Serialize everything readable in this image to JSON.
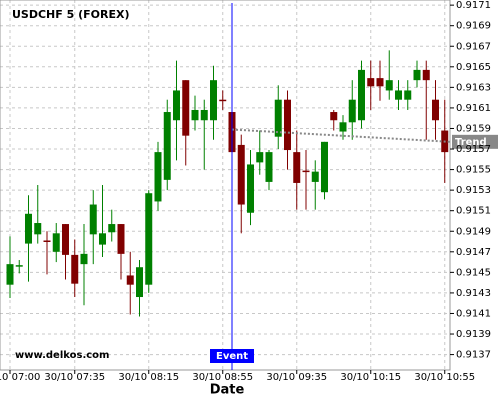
{
  "chart_data": {
    "type": "candlestick",
    "title": "USDCHF 5 (FOREX)",
    "x_label": "Date",
    "watermark": "www.delkos.com",
    "categories": [
      "30/10 07:00",
      null,
      null,
      null,
      null,
      null,
      null,
      "30/10 07:35",
      null,
      null,
      null,
      null,
      null,
      null,
      null,
      "30/10 08:15",
      null,
      null,
      null,
      null,
      null,
      null,
      null,
      "30/10 08:55",
      null,
      null,
      null,
      null,
      null,
      null,
      null,
      "30/10 09:35",
      null,
      null,
      null,
      null,
      null,
      null,
      null,
      "30/10 10:15",
      null,
      null,
      null,
      null,
      null,
      null,
      null,
      "30/10 10:55"
    ],
    "open": [
      0.91438,
      0.91456,
      0.91478,
      0.91487,
      0.91481,
      0.9147,
      0.91497,
      0.91467,
      0.91458,
      0.91487,
      0.91477,
      0.91489,
      0.91497,
      0.91447,
      0.91426,
      0.91438,
      0.91519,
      0.9154,
      0.91598,
      0.91637,
      0.91598,
      0.91598,
      0.91598,
      0.91618,
      0.91606,
      0.91574,
      0.91508,
      0.91557,
      0.91538,
      0.91582,
      0.91618,
      0.91567,
      0.91549,
      0.91538,
      0.91528,
      0.91606,
      0.91587,
      0.91596,
      0.91598,
      0.91639,
      0.91639,
      0.91627,
      0.91618,
      0.91618,
      0.91637,
      0.91647,
      0.91618,
      0.91588
    ],
    "high": [
      0.91485,
      0.91462,
      0.91525,
      0.91535,
      0.9149,
      0.91498,
      0.91497,
      0.91482,
      0.91497,
      0.9153,
      0.91535,
      0.91511,
      0.91497,
      0.9147,
      0.91462,
      0.9153,
      0.91577,
      0.91618,
      0.91656,
      0.91637,
      0.91622,
      0.91618,
      0.91651,
      0.91627,
      0.91606,
      0.91584,
      0.91569,
      0.91588,
      0.91569,
      0.91632,
      0.91627,
      0.91588,
      0.91569,
      0.91559,
      0.91577,
      0.91608,
      0.91603,
      0.91637,
      0.91656,
      0.91656,
      0.91656,
      0.91666,
      0.91637,
      0.91637,
      0.91656,
      0.91656,
      0.91637,
      0.91618
    ],
    "low": [
      0.91425,
      0.91449,
      0.91441,
      0.91478,
      0.91448,
      0.9146,
      0.91443,
      0.91426,
      0.91418,
      0.91458,
      0.91465,
      0.9148,
      0.91443,
      0.91409,
      0.91407,
      0.9143,
      0.9151,
      0.9153,
      0.91559,
      0.91554,
      0.91588,
      0.9155,
      0.91579,
      0.91608,
      0.9155,
      0.91488,
      0.91496,
      0.91545,
      0.9153,
      0.9157,
      0.9155,
      0.91511,
      0.91511,
      0.91511,
      0.91521,
      0.91588,
      0.91579,
      0.91579,
      0.9159,
      0.91608,
      0.91617,
      0.91618,
      0.91608,
      0.91608,
      0.9163,
      0.91579,
      0.91579,
      0.91537
    ],
    "close": [
      0.91458,
      0.91457,
      0.91507,
      0.91498,
      0.9148,
      0.91488,
      0.91467,
      0.91439,
      0.91468,
      0.91516,
      0.91488,
      0.91497,
      0.91468,
      0.91438,
      0.91455,
      0.91527,
      0.91567,
      0.91606,
      0.91627,
      0.91583,
      0.91608,
      0.91608,
      0.91637,
      0.91617,
      0.91567,
      0.91516,
      0.91555,
      0.91567,
      0.91567,
      0.91618,
      0.91569,
      0.91537,
      0.91548,
      0.91548,
      0.91577,
      0.91598,
      0.91596,
      0.91618,
      0.91647,
      0.91631,
      0.91631,
      0.91637,
      0.91627,
      0.91627,
      0.91647,
      0.91637,
      0.91598,
      0.91567
    ],
    "up_color": "#008000",
    "down_color": "#800000",
    "ylim": [
      0.91355,
      0.91715
    ],
    "yticks": [
      0.9137,
      0.9139,
      0.9141,
      0.9143,
      0.9145,
      0.9147,
      0.9149,
      0.9151,
      0.9153,
      0.9155,
      0.9157,
      0.9159,
      0.9161,
      0.9163,
      0.9165,
      0.9167,
      0.9169,
      0.9171
    ],
    "grid": true,
    "event": {
      "label": "Event",
      "index": 24,
      "color": "#0000ff"
    },
    "trend": {
      "label": "Trend",
      "start": 0.91589,
      "end": 0.91577,
      "color": "#888888"
    }
  }
}
